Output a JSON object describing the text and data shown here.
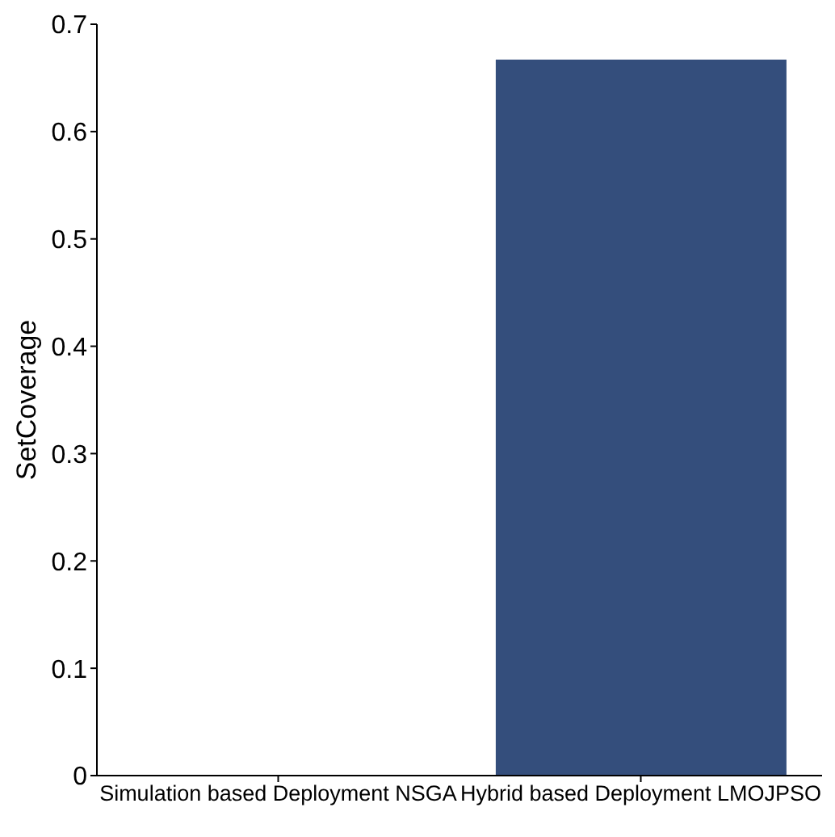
{
  "chart_data": {
    "type": "bar",
    "ylabel": "SetCoverage",
    "categories": [
      "Simulation based Deployment NSGA",
      "Hybrid based Deployment LMOJPSO"
    ],
    "values": [
      0,
      0.667
    ],
    "color": "#344e7c",
    "ylim": [
      0,
      0.7
    ],
    "yticks": [
      0,
      0.1,
      0.2,
      0.3,
      0.4,
      0.5,
      0.6,
      0.7
    ],
    "grid": false,
    "legend": false
  }
}
